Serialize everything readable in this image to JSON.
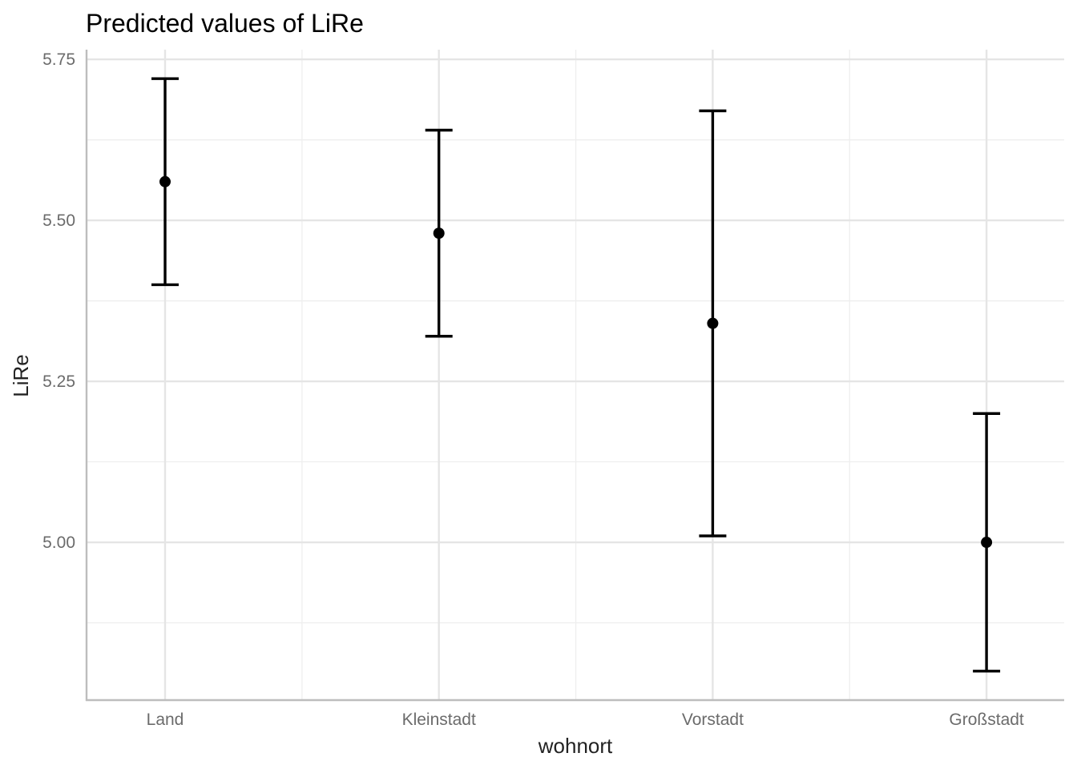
{
  "chart_data": {
    "type": "scatter",
    "title": "Predicted values of LiRe",
    "xlabel": "wohnort",
    "ylabel": "LiRe",
    "categories": [
      "Land",
      "Kleinstadt",
      "Vorstadt",
      "Großstadt"
    ],
    "series": [
      {
        "values": [
          5.56,
          5.48,
          5.34,
          5.0
        ],
        "lower": [
          5.4,
          5.32,
          5.01,
          4.8
        ],
        "upper": [
          5.72,
          5.64,
          5.67,
          5.2
        ]
      }
    ],
    "ylim": [
      4.755,
      5.765
    ],
    "yticks": [
      5.0,
      5.25,
      5.5,
      5.75
    ],
    "ytick_labels": [
      "5.00",
      "5.25",
      "5.50",
      "5.75"
    ],
    "grid": true,
    "legend": "none",
    "colors": {
      "marks": "#000000",
      "grid": "#e5e5e5",
      "axis": "#bdbdbd",
      "tick_text": "#6b6b6b"
    }
  }
}
